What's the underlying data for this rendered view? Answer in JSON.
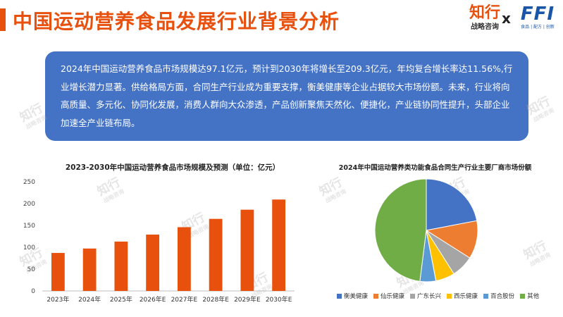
{
  "header": {
    "title": "中国运动营养食品发展行业背景分析",
    "logo_zhixing": "知行",
    "logo_zhixing_sub": "战略咨询",
    "logo_x": "x",
    "logo_ffi": "FFI",
    "logo_ffi_sub": "食品 | 配方 | 创新"
  },
  "summary": {
    "text": "2024年中国运动营养食品市场规模达97.1亿元，预计到2030年将增长至209.3亿元，年均复合增长率达11.56%,行业增长潜力显著。供给格局方面，合同生产行业成为重要支撑，衡美健康等企业占据较大市场份额。未来，行业将向高质量、多元化、协同化发展，消费人群向大众渗透，产品创新聚焦天然化、便捷化，产业链协同性提升，头部企业加速全产业链布局。"
  },
  "watermark": {
    "big": "知行",
    "small": "战略咨询"
  },
  "colors": {
    "accent": "#E8500E",
    "box": "#4472C4"
  },
  "chart_data": [
    {
      "type": "bar",
      "title": "2023-2030年中国运动营养食品市场规模及预测（单位：亿元）",
      "categories": [
        "2023年",
        "2024年",
        "2025年",
        "2026年E",
        "2027年E",
        "2028年E",
        "2029年E",
        "2030年E"
      ],
      "values": [
        87,
        97.1,
        113,
        129,
        146,
        165,
        186,
        209.3
      ],
      "ylim": [
        0,
        250
      ],
      "yticks": [
        0,
        50,
        100,
        150,
        200,
        250
      ],
      "color": "#E8500E",
      "grid": false
    },
    {
      "type": "pie",
      "title": "2024年中国运动营养类功能食品合同生产行业主要厂商市场份额",
      "labels": [
        "衡美健康",
        "仙乐健康",
        "广东长兴",
        "西乐健康",
        "百合股份",
        "其他"
      ],
      "values": [
        22,
        12,
        7,
        6,
        5,
        48
      ],
      "colors": [
        "#4472C4",
        "#ED7D31",
        "#A5A5A5",
        "#FFC000",
        "#5B9BD5",
        "#70AD47"
      ],
      "legend_position": "bottom"
    }
  ]
}
